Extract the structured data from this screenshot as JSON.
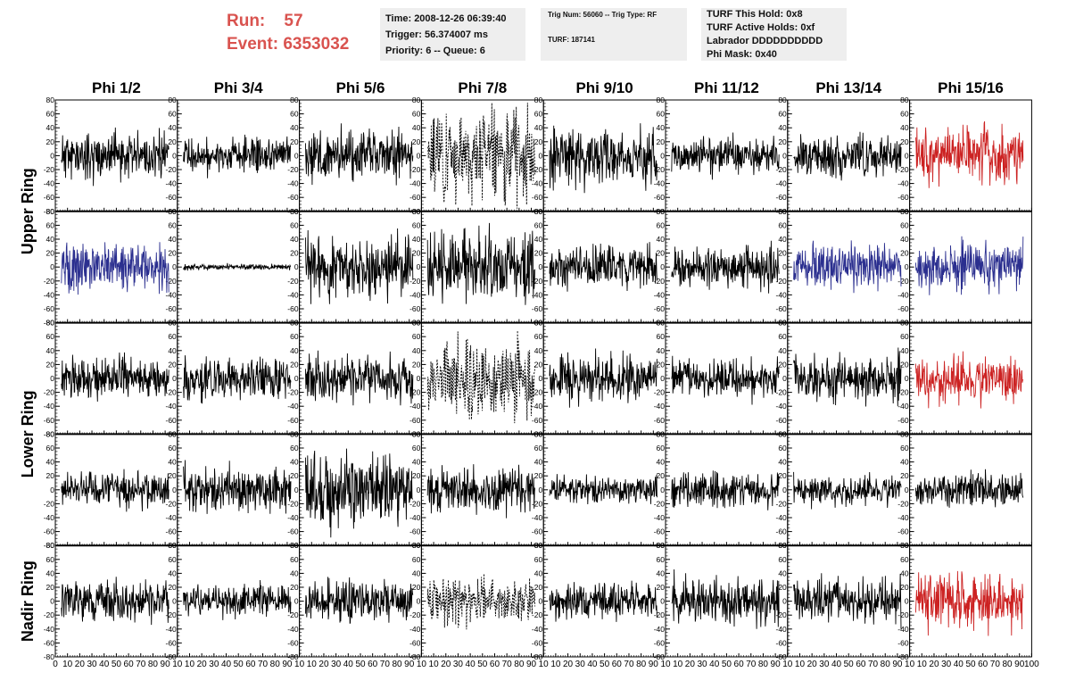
{
  "header": {
    "run_label": "Run:",
    "run_value": "57",
    "event_label": "Event:",
    "event_value": "6353032"
  },
  "info_box_1": {
    "time": "Time: 2008-12-26 06:39:40",
    "trigger": "Trigger: 56.374007 ms",
    "priority": "Priority: 6 -- Queue: 6"
  },
  "info_box_2": {
    "trig": "Trig Num: 56060 -- Trig Type: RF",
    "turf": "TURF: 187141"
  },
  "info_box_3": {
    "this_hold": "TURF This Hold: 0x8",
    "active_holds": "TURF Active Holds: 0xf",
    "labrador": "Labrador DDDDDDDDDD",
    "phi_mask": "Phi Mask: 0x40"
  },
  "colors": {
    "default_trace": "#000000",
    "highlight_red": "#cc2222",
    "highlight_blue": "#2b2f8f",
    "text_red": "#d9534f",
    "box_bg": "#eeeeee"
  },
  "chart_data": {
    "type": "line",
    "columns": [
      "Phi 1/2",
      "Phi 3/4",
      "Phi 5/6",
      "Phi 7/8",
      "Phi 9/10",
      "Phi 11/12",
      "Phi 13/14",
      "Phi 15/16"
    ],
    "row_labels": [
      {
        "text": "Upper Ring",
        "rows": [
          0,
          1
        ]
      },
      {
        "text": "Lower Ring",
        "rows": [
          2,
          3
        ]
      },
      {
        "text": "Nadir Ring",
        "rows": [
          4
        ]
      }
    ],
    "xlim": [
      0,
      100
    ],
    "ylim": [
      -80,
      80
    ],
    "yticks": [
      -80,
      -60,
      -40,
      -20,
      0,
      20,
      40,
      60,
      80
    ],
    "xticks": [
      0,
      10,
      20,
      30,
      40,
      50,
      60,
      70,
      80,
      90,
      100
    ],
    "xtick_labels_printed": [
      "0",
      "10",
      "20",
      "30",
      "40",
      "50",
      "60",
      "70",
      "80",
      "90",
      "10",
      "10",
      "20",
      "30",
      "40",
      "50",
      "60",
      "70",
      "80",
      "90",
      "10",
      "10",
      "20",
      "30",
      "40",
      "50",
      "60",
      "70",
      "80",
      "90",
      "10",
      "10",
      "20",
      "30",
      "40",
      "50",
      "60",
      "70",
      "80",
      "90",
      "10",
      "10",
      "20",
      "30",
      "40",
      "50",
      "60",
      "70",
      "80",
      "90",
      "10",
      "10",
      "20",
      "30",
      "40",
      "50",
      "60",
      "70",
      "80",
      "90",
      "10",
      "10",
      "20",
      "30",
      "40",
      "50",
      "60",
      "70",
      "80",
      "90",
      "10",
      "10",
      "20",
      "30",
      "40",
      "50",
      "60",
      "70",
      "80",
      "90",
      "100"
    ],
    "waveform_extent_x": [
      5,
      93
    ],
    "grid": false,
    "panels": [
      {
        "row": 0,
        "col": 0,
        "color": "black",
        "style": "solid",
        "amplitude": 16,
        "seed": 11
      },
      {
        "row": 0,
        "col": 1,
        "color": "black",
        "style": "solid",
        "amplitude": 12,
        "seed": 12
      },
      {
        "row": 0,
        "col": 2,
        "color": "black",
        "style": "solid",
        "amplitude": 18,
        "seed": 13
      },
      {
        "row": 0,
        "col": 3,
        "color": "black",
        "style": "dotted",
        "amplitude": 30,
        "seed": 14
      },
      {
        "row": 0,
        "col": 4,
        "color": "black",
        "style": "solid",
        "amplitude": 20,
        "seed": 15
      },
      {
        "row": 0,
        "col": 5,
        "color": "black",
        "style": "solid",
        "amplitude": 12,
        "seed": 16
      },
      {
        "row": 0,
        "col": 6,
        "color": "black",
        "style": "solid",
        "amplitude": 14,
        "seed": 17
      },
      {
        "row": 0,
        "col": 7,
        "color": "red",
        "style": "solid",
        "amplitude": 18,
        "seed": 18
      },
      {
        "row": 1,
        "col": 0,
        "color": "blue",
        "style": "solid",
        "amplitude": 16,
        "seed": 21
      },
      {
        "row": 1,
        "col": 1,
        "color": "black",
        "style": "solid",
        "amplitude": 2,
        "seed": 22
      },
      {
        "row": 1,
        "col": 2,
        "color": "black",
        "style": "solid",
        "amplitude": 22,
        "seed": 23
      },
      {
        "row": 1,
        "col": 3,
        "color": "black",
        "style": "solid",
        "amplitude": 24,
        "seed": 24
      },
      {
        "row": 1,
        "col": 4,
        "color": "black",
        "style": "solid",
        "amplitude": 14,
        "seed": 25
      },
      {
        "row": 1,
        "col": 5,
        "color": "black",
        "style": "solid",
        "amplitude": 14,
        "seed": 26
      },
      {
        "row": 1,
        "col": 6,
        "color": "blue",
        "style": "solid",
        "amplitude": 14,
        "seed": 27
      },
      {
        "row": 1,
        "col": 7,
        "color": "blue",
        "style": "solid",
        "amplitude": 16,
        "seed": 28
      },
      {
        "row": 2,
        "col": 0,
        "color": "black",
        "style": "solid",
        "amplitude": 14,
        "seed": 31
      },
      {
        "row": 2,
        "col": 1,
        "color": "black",
        "style": "solid",
        "amplitude": 14,
        "seed": 32
      },
      {
        "row": 2,
        "col": 2,
        "color": "black",
        "style": "solid",
        "amplitude": 16,
        "seed": 33
      },
      {
        "row": 2,
        "col": 3,
        "color": "black",
        "style": "dotted",
        "amplitude": 26,
        "seed": 34
      },
      {
        "row": 2,
        "col": 4,
        "color": "black",
        "style": "solid",
        "amplitude": 16,
        "seed": 35
      },
      {
        "row": 2,
        "col": 5,
        "color": "black",
        "style": "solid",
        "amplitude": 14,
        "seed": 36
      },
      {
        "row": 2,
        "col": 6,
        "color": "black",
        "style": "solid",
        "amplitude": 16,
        "seed": 37
      },
      {
        "row": 2,
        "col": 7,
        "color": "red",
        "style": "solid",
        "amplitude": 16,
        "seed": 38
      },
      {
        "row": 3,
        "col": 0,
        "color": "black",
        "style": "solid",
        "amplitude": 12,
        "seed": 41
      },
      {
        "row": 3,
        "col": 1,
        "color": "black",
        "style": "solid",
        "amplitude": 16,
        "seed": 42
      },
      {
        "row": 3,
        "col": 2,
        "color": "black",
        "style": "solid",
        "amplitude": 26,
        "seed": 43
      },
      {
        "row": 3,
        "col": 3,
        "color": "black",
        "style": "solid",
        "amplitude": 16,
        "seed": 44
      },
      {
        "row": 3,
        "col": 4,
        "color": "black",
        "style": "solid",
        "amplitude": 10,
        "seed": 45
      },
      {
        "row": 3,
        "col": 5,
        "color": "black",
        "style": "solid",
        "amplitude": 12,
        "seed": 46
      },
      {
        "row": 3,
        "col": 6,
        "color": "black",
        "style": "solid",
        "amplitude": 10,
        "seed": 47
      },
      {
        "row": 3,
        "col": 7,
        "color": "black",
        "style": "solid",
        "amplitude": 12,
        "seed": 48
      },
      {
        "row": 4,
        "col": 0,
        "color": "black",
        "style": "solid",
        "amplitude": 14,
        "seed": 51
      },
      {
        "row": 4,
        "col": 1,
        "color": "black",
        "style": "solid",
        "amplitude": 12,
        "seed": 52
      },
      {
        "row": 4,
        "col": 2,
        "color": "black",
        "style": "solid",
        "amplitude": 14,
        "seed": 53
      },
      {
        "row": 4,
        "col": 3,
        "color": "black",
        "style": "dotted",
        "amplitude": 16,
        "seed": 54
      },
      {
        "row": 4,
        "col": 4,
        "color": "black",
        "style": "solid",
        "amplitude": 12,
        "seed": 55
      },
      {
        "row": 4,
        "col": 5,
        "color": "black",
        "style": "solid",
        "amplitude": 16,
        "seed": 56
      },
      {
        "row": 4,
        "col": 6,
        "color": "black",
        "style": "solid",
        "amplitude": 16,
        "seed": 57
      },
      {
        "row": 4,
        "col": 7,
        "color": "red",
        "style": "solid",
        "amplitude": 20,
        "seed": 58
      }
    ]
  }
}
